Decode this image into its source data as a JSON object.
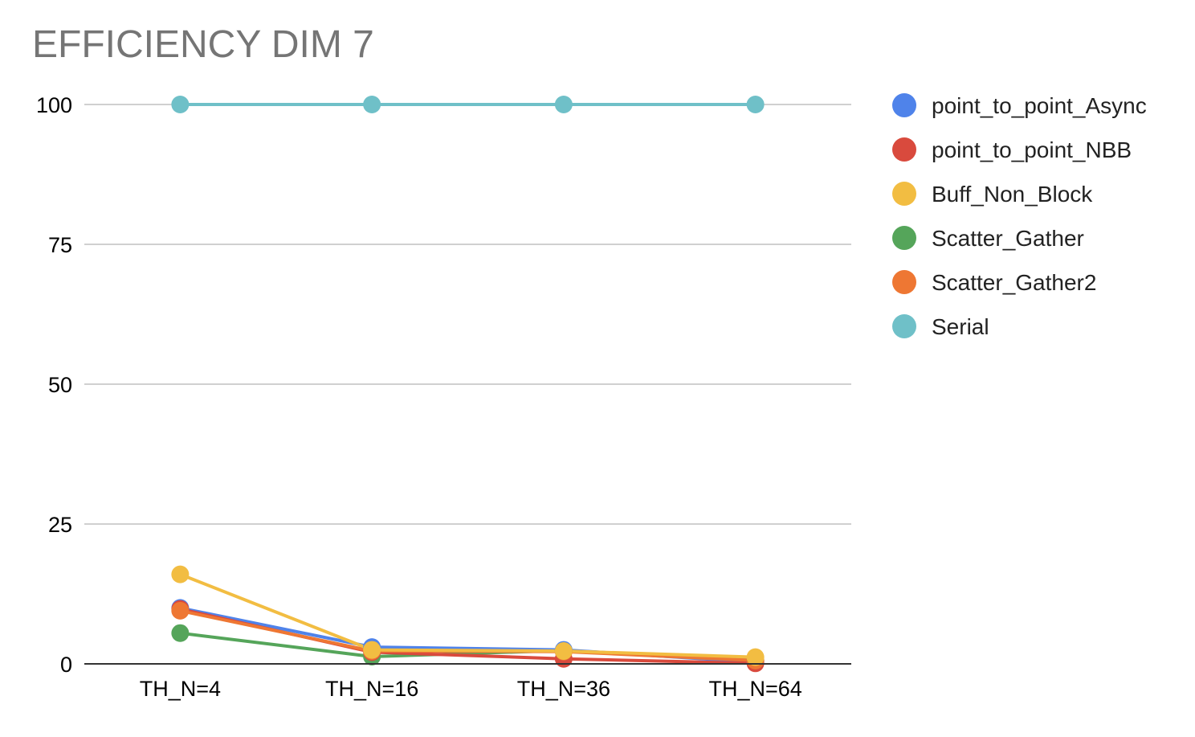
{
  "chart_data": {
    "type": "line",
    "title": "EFFICIENCY DIM 7",
    "xlabel": "",
    "ylabel": "",
    "categories": [
      "TH_N=4",
      "TH_N=16",
      "TH_N=36",
      "TH_N=64"
    ],
    "ylim": [
      0,
      100
    ],
    "yticks": [
      0,
      25,
      50,
      75,
      100
    ],
    "grid": true,
    "legend_position": "right",
    "series": [
      {
        "name": "point_to_point_Async",
        "color": "#4f83ea",
        "values": [
          10.0,
          3.0,
          2.5,
          0.3
        ]
      },
      {
        "name": "point_to_point_NBB",
        "color": "#d94a3d",
        "values": [
          9.8,
          2.1,
          0.9,
          0.1
        ]
      },
      {
        "name": "Buff_Non_Block",
        "color": "#f2bd42",
        "values": [
          16.0,
          2.5,
          2.3,
          1.2
        ]
      },
      {
        "name": "Scatter_Gather",
        "color": "#55a55a",
        "values": [
          5.5,
          1.3,
          2.4,
          0.6
        ]
      },
      {
        "name": "Scatter_Gather2",
        "color": "#ee7733",
        "values": [
          9.5,
          2.3,
          2.2,
          0.6
        ]
      },
      {
        "name": "Serial",
        "color": "#6fc0c8",
        "values": [
          100,
          100,
          100,
          100
        ]
      }
    ]
  }
}
